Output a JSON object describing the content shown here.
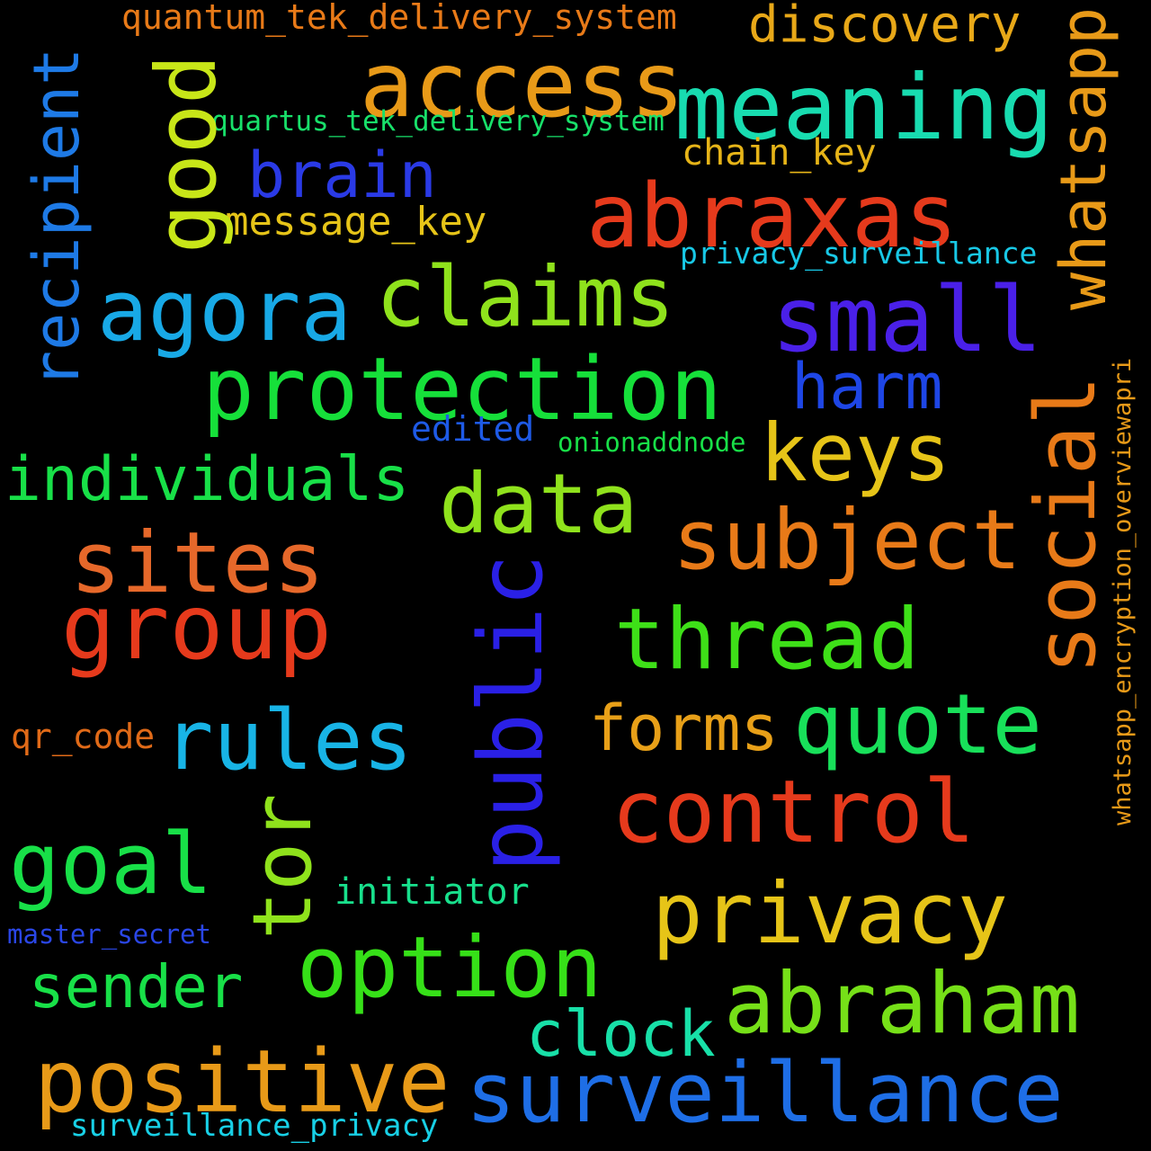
{
  "words": {
    "access": "access",
    "meaning": "meaning",
    "abraxas": "abraxas",
    "claims": "claims",
    "agora": "agora",
    "small": "small",
    "protection": "protection",
    "keys": "keys",
    "individuals": "individuals",
    "data": "data",
    "subject": "subject",
    "sites": "sites",
    "group": "group",
    "thread": "thread",
    "quote": "quote",
    "rules": "rules",
    "forms": "forms",
    "control": "control",
    "goal": "goal",
    "privacy": "privacy",
    "option": "option",
    "abraham": "abraham",
    "sender": "sender",
    "clock": "clock",
    "positive": "positive",
    "surveillance": "surveillance",
    "brain": "brain",
    "harm": "harm",
    "quantum_tek_delivery_system": "quantum_tek_delivery_system",
    "quartus_tek_delivery_system": "quartus_tek_delivery_system",
    "discovery": "discovery",
    "chain_key": "chain_key",
    "message_key": "message_key",
    "privacy_surveillance": "privacy_surveillance",
    "edited": "edited",
    "onionaddnode": "onionaddnode",
    "qr_code": "qr_code",
    "initiator": "initiator",
    "master_secret": "master_secret",
    "surveillance_privacy": "surveillance_privacy",
    "recipient": "recipient",
    "good": "good",
    "whatsapp": "whatsapp",
    "social": "social",
    "public": "public",
    "tor": "tor",
    "whatsapp_encryption_overviewapri": "whatsapp_encryption_overviewapri"
  },
  "colors": {
    "background": "#000000"
  }
}
